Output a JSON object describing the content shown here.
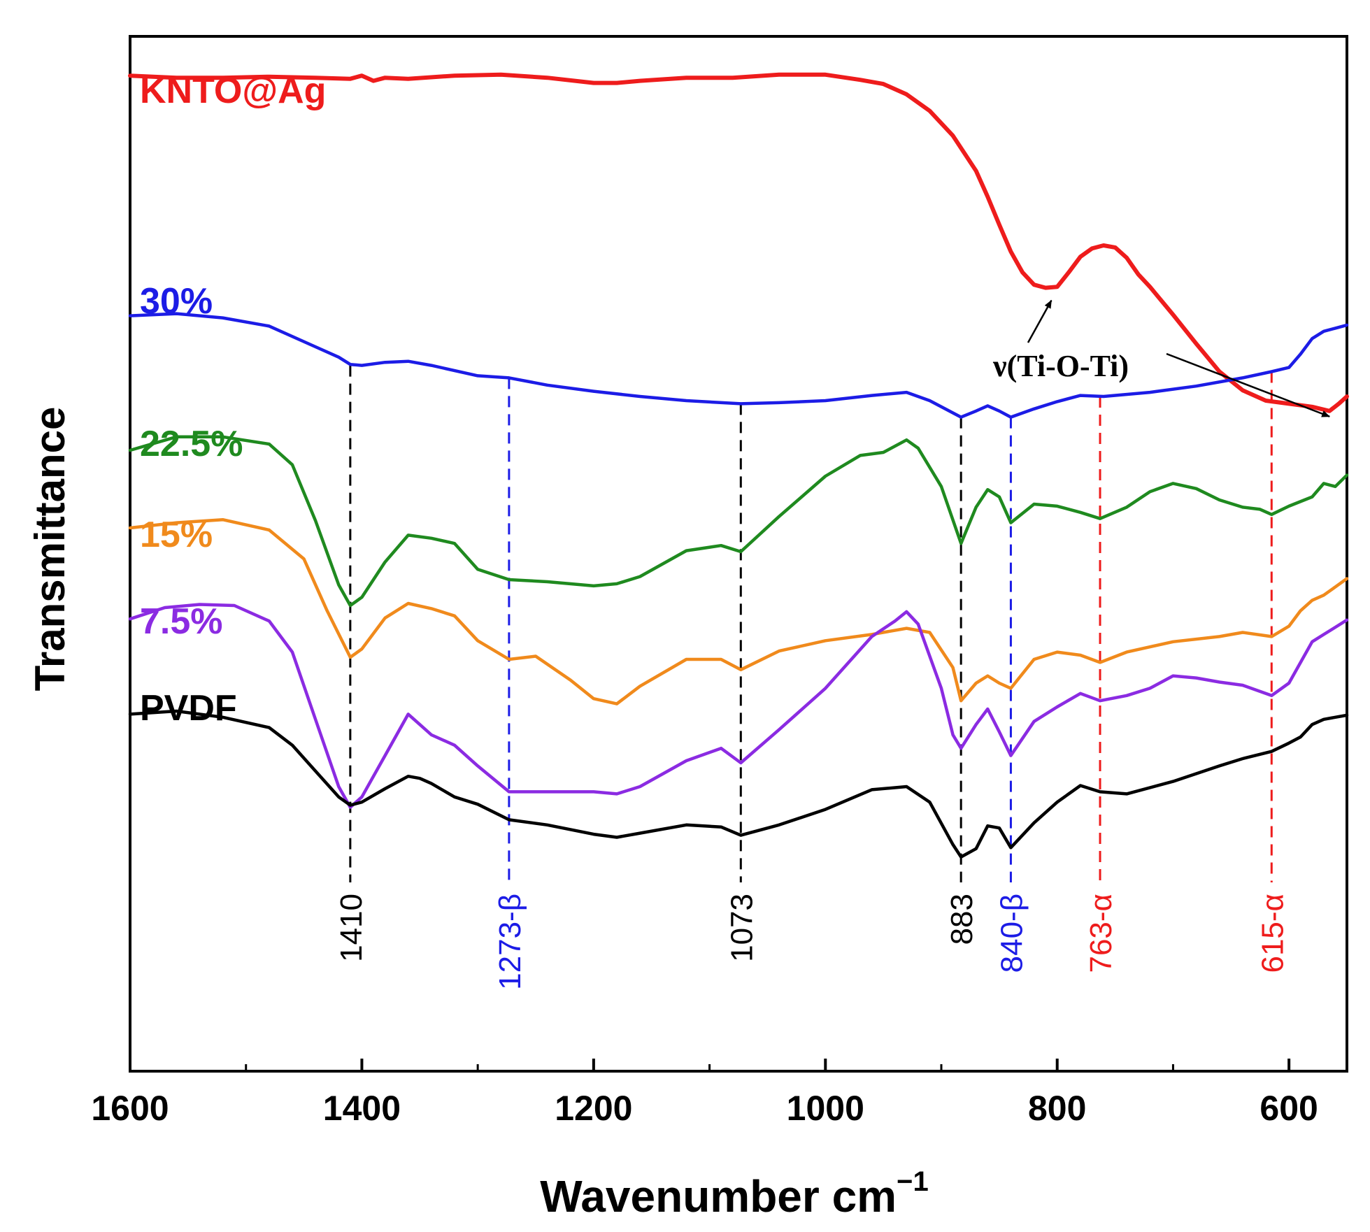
{
  "chart_data": {
    "type": "line",
    "title": "",
    "xlabel": "Wavenumber cm",
    "xlabel_sup": "−1",
    "ylabel": "Transmittance",
    "xlim": [
      1600,
      550
    ],
    "ylim": [
      0,
      100
    ],
    "x_axis_reversed": true,
    "grid": false,
    "yticks_shown": false,
    "xticks": [
      1600,
      1400,
      1200,
      1000,
      800,
      600
    ],
    "xtick_labels": [
      "1600",
      "1400",
      "1200",
      "1000",
      "800",
      "600"
    ],
    "series": [
      {
        "name": "KNTO@Ag",
        "color": "#ee1c1c",
        "x": [
          1600,
          1560,
          1520,
          1480,
          1440,
          1410,
          1400,
          1390,
          1380,
          1360,
          1320,
          1280,
          1240,
          1200,
          1180,
          1160,
          1120,
          1080,
          1040,
          1000,
          970,
          950,
          930,
          910,
          890,
          870,
          860,
          850,
          840,
          830,
          820,
          810,
          800,
          790,
          780,
          770,
          760,
          750,
          740,
          730,
          720,
          700,
          680,
          660,
          640,
          620,
          600,
          580,
          565,
          557,
          550
        ],
        "y": [
          96.2,
          96.0,
          96.0,
          96.1,
          96.0,
          95.9,
          96.2,
          95.7,
          96.0,
          95.9,
          96.2,
          96.3,
          96.0,
          95.5,
          95.5,
          95.7,
          96.0,
          96.0,
          96.3,
          96.3,
          95.8,
          95.4,
          94.4,
          92.8,
          90.4,
          87.0,
          84.5,
          81.8,
          79.2,
          77.2,
          76.0,
          75.7,
          75.8,
          77.2,
          78.7,
          79.5,
          79.8,
          79.6,
          78.6,
          77.0,
          75.8,
          73.1,
          70.3,
          67.6,
          65.8,
          64.8,
          64.5,
          64.2,
          63.8,
          64.5,
          65.2
        ]
      },
      {
        "name": "30%",
        "color": "#1c1ce6",
        "x": [
          1600,
          1560,
          1520,
          1480,
          1440,
          1420,
          1410,
          1400,
          1380,
          1360,
          1340,
          1300,
          1273,
          1240,
          1200,
          1160,
          1120,
          1073,
          1040,
          1000,
          960,
          930,
          910,
          883,
          870,
          860,
          850,
          840,
          820,
          800,
          780,
          760,
          720,
          680,
          640,
          615,
          600,
          590,
          580,
          570,
          560,
          550
        ],
        "y": [
          73.0,
          73.2,
          72.8,
          72.0,
          70.0,
          69.0,
          68.3,
          68.2,
          68.5,
          68.6,
          68.2,
          67.2,
          67.0,
          66.3,
          65.7,
          65.2,
          64.8,
          64.5,
          64.6,
          64.8,
          65.3,
          65.6,
          64.8,
          63.2,
          63.8,
          64.3,
          63.8,
          63.2,
          64.0,
          64.7,
          65.3,
          65.2,
          65.6,
          66.2,
          67.0,
          67.6,
          68.0,
          69.3,
          70.8,
          71.5,
          71.8,
          72.1
        ]
      },
      {
        "name": "22.5%",
        "color": "#1f8a1f",
        "x": [
          1600,
          1560,
          1520,
          1480,
          1460,
          1440,
          1420,
          1410,
          1400,
          1380,
          1360,
          1340,
          1320,
          1300,
          1273,
          1240,
          1200,
          1180,
          1160,
          1120,
          1090,
          1073,
          1040,
          1000,
          970,
          950,
          930,
          920,
          900,
          883,
          870,
          860,
          850,
          840,
          820,
          800,
          780,
          763,
          740,
          720,
          700,
          680,
          660,
          640,
          625,
          615,
          600,
          580,
          570,
          560,
          550
        ],
        "y": [
          60.0,
          61.3,
          61.3,
          60.6,
          58.6,
          53.2,
          47.0,
          45.0,
          45.8,
          49.2,
          51.8,
          51.5,
          51.0,
          48.5,
          47.5,
          47.3,
          46.9,
          47.1,
          47.8,
          50.3,
          50.8,
          50.2,
          53.6,
          57.5,
          59.5,
          59.8,
          61.0,
          60.2,
          56.5,
          51.0,
          54.5,
          56.2,
          55.5,
          53.0,
          54.8,
          54.6,
          54.0,
          53.4,
          54.5,
          56.0,
          56.8,
          56.3,
          55.2,
          54.5,
          54.3,
          53.8,
          54.6,
          55.5,
          56.8,
          56.5,
          57.6
        ]
      },
      {
        "name": "15%",
        "color": "#f08a1c",
        "x": [
          1600,
          1560,
          1520,
          1480,
          1450,
          1430,
          1410,
          1400,
          1380,
          1360,
          1340,
          1320,
          1300,
          1273,
          1250,
          1220,
          1200,
          1180,
          1160,
          1120,
          1090,
          1073,
          1040,
          1000,
          960,
          930,
          910,
          890,
          883,
          870,
          860,
          850,
          840,
          820,
          800,
          780,
          763,
          740,
          700,
          660,
          640,
          615,
          600,
          590,
          580,
          570,
          560,
          550
        ],
        "y": [
          52.5,
          53.0,
          53.3,
          52.3,
          49.5,
          44.5,
          40.0,
          40.8,
          43.8,
          45.2,
          44.7,
          44.0,
          41.6,
          39.8,
          40.1,
          37.8,
          36.0,
          35.5,
          37.2,
          39.8,
          39.8,
          38.8,
          40.6,
          41.6,
          42.2,
          42.8,
          42.4,
          39.0,
          35.8,
          37.5,
          38.2,
          37.5,
          37.0,
          39.8,
          40.5,
          40.2,
          39.5,
          40.5,
          41.5,
          42.0,
          42.4,
          42.0,
          43.0,
          44.5,
          45.5,
          46.0,
          46.8,
          47.6
        ]
      },
      {
        "name": "7.5%",
        "color": "#8b2be2",
        "x": [
          1600,
          1570,
          1540,
          1510,
          1480,
          1460,
          1440,
          1420,
          1410,
          1400,
          1380,
          1360,
          1350,
          1340,
          1320,
          1300,
          1273,
          1240,
          1200,
          1180,
          1160,
          1120,
          1090,
          1073,
          1040,
          1000,
          960,
          940,
          930,
          920,
          900,
          890,
          883,
          870,
          860,
          850,
          840,
          820,
          800,
          780,
          763,
          740,
          720,
          700,
          680,
          660,
          640,
          615,
          600,
          580,
          570,
          560,
          550
        ],
        "y": [
          43.7,
          44.8,
          45.1,
          45.0,
          43.5,
          40.5,
          34.0,
          27.5,
          25.5,
          26.5,
          30.5,
          34.5,
          33.5,
          32.5,
          31.5,
          29.5,
          27.0,
          27.0,
          27.0,
          26.8,
          27.5,
          30.0,
          31.2,
          29.8,
          33.0,
          37.0,
          42.0,
          43.5,
          44.4,
          43.2,
          37.0,
          32.5,
          31.2,
          33.5,
          35.0,
          32.8,
          30.5,
          33.8,
          35.2,
          36.5,
          35.8,
          36.3,
          37.0,
          38.2,
          38.0,
          37.6,
          37.3,
          36.3,
          37.5,
          41.5,
          42.2,
          42.9,
          43.6
        ]
      },
      {
        "name": "PVDF",
        "color": "#000000",
        "x": [
          1600,
          1560,
          1520,
          1480,
          1460,
          1440,
          1420,
          1410,
          1400,
          1380,
          1360,
          1350,
          1340,
          1320,
          1300,
          1273,
          1240,
          1200,
          1180,
          1160,
          1120,
          1090,
          1073,
          1040,
          1000,
          960,
          930,
          910,
          890,
          883,
          870,
          860,
          850,
          840,
          820,
          800,
          780,
          763,
          740,
          700,
          660,
          640,
          615,
          600,
          590,
          580,
          570,
          560,
          550
        ],
        "y": [
          34.5,
          34.8,
          34.2,
          33.2,
          31.5,
          29.0,
          26.5,
          25.7,
          26.0,
          27.3,
          28.5,
          28.3,
          27.8,
          26.5,
          25.8,
          24.3,
          23.8,
          22.9,
          22.6,
          23.0,
          23.8,
          23.6,
          22.8,
          23.8,
          25.3,
          27.2,
          27.5,
          26.0,
          21.9,
          20.7,
          21.5,
          23.7,
          23.5,
          21.6,
          24.0,
          26.0,
          27.6,
          27.0,
          26.8,
          28.0,
          29.5,
          30.2,
          30.9,
          31.7,
          32.3,
          33.5,
          34.0,
          34.2,
          34.4
        ]
      }
    ],
    "reference_lines": [
      {
        "x": 1410,
        "label": "1410",
        "color": "#000000",
        "y_top": 68.2,
        "label_color": "#000000"
      },
      {
        "x": 1273,
        "label": "1273-β",
        "color": "#1c1ce6",
        "y_top": 67.0,
        "label_color": "#1c1ce6"
      },
      {
        "x": 1073,
        "label": "1073",
        "color": "#000000",
        "y_top": 64.5,
        "label_color": "#000000"
      },
      {
        "x": 883,
        "label": "883",
        "color": "#000000",
        "y_top": 63.2,
        "label_color": "#000000"
      },
      {
        "x": 840,
        "label": "840-β",
        "color": "#1c1ce6",
        "y_top": 63.2,
        "label_color": "#1c1ce6"
      },
      {
        "x": 763,
        "label": "763-α",
        "color": "#ee1c1c",
        "y_top": 65.2,
        "label_color": "#ee1c1c"
      },
      {
        "x": 615,
        "label": "615-α",
        "color": "#ee1c1c",
        "y_top": 67.6,
        "label_color": "#ee1c1c"
      }
    ],
    "annotation": {
      "text": "ν(Ti-O-Ti)",
      "arrow_targets": [
        {
          "x": 805,
          "y": 75.7
        },
        {
          "x": 565,
          "y": 63.8
        }
      ]
    }
  }
}
